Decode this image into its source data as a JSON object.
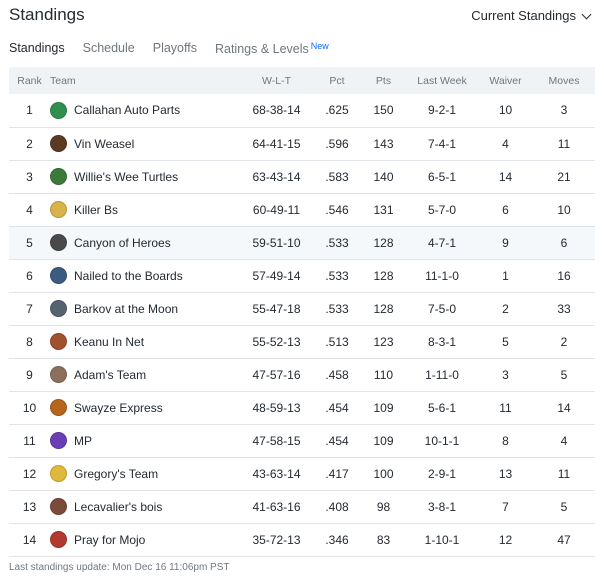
{
  "header": {
    "title": "Standings",
    "dropdown_label": "Current Standings"
  },
  "tabs": [
    {
      "label": "Standings",
      "active": true
    },
    {
      "label": "Schedule",
      "active": false
    },
    {
      "label": "Playoffs",
      "active": false
    },
    {
      "label": "Ratings & Levels",
      "badge": "New",
      "active": false
    }
  ],
  "table": {
    "columns": [
      "Rank",
      "Team",
      "W-L-T",
      "Pct",
      "Pts",
      "Last Week",
      "Waiver",
      "Moves"
    ],
    "rows": [
      {
        "rank": "1",
        "team": "Callahan Auto Parts",
        "wlt": "68-38-14",
        "pct": ".625",
        "pts": "150",
        "last_week": "9-2-1",
        "waiver": "10",
        "moves": "3",
        "avatar_color": "#2f8f4e"
      },
      {
        "rank": "2",
        "team": "Vin Weasel",
        "wlt": "64-41-15",
        "pct": ".596",
        "pts": "143",
        "last_week": "7-4-1",
        "waiver": "4",
        "moves": "11",
        "avatar_color": "#5a3a22"
      },
      {
        "rank": "3",
        "team": "Willie's Wee Turtles",
        "wlt": "63-43-14",
        "pct": ".583",
        "pts": "140",
        "last_week": "6-5-1",
        "waiver": "14",
        "moves": "21",
        "avatar_color": "#3c7a3a"
      },
      {
        "rank": "4",
        "team": "Killer Bs",
        "wlt": "60-49-11",
        "pct": ".546",
        "pts": "131",
        "last_week": "5-7-0",
        "waiver": "6",
        "moves": "10",
        "avatar_color": "#d8b24a"
      },
      {
        "rank": "5",
        "team": "Canyon of Heroes",
        "wlt": "59-51-10",
        "pct": ".533",
        "pts": "128",
        "last_week": "4-7-1",
        "waiver": "9",
        "moves": "6",
        "avatar_color": "#4a4a4a",
        "highlight": true
      },
      {
        "rank": "6",
        "team": "Nailed to the Boards",
        "wlt": "57-49-14",
        "pct": ".533",
        "pts": "128",
        "last_week": "11-1-0",
        "waiver": "1",
        "moves": "16",
        "avatar_color": "#3d5a80"
      },
      {
        "rank": "7",
        "team": "Barkov at the Moon",
        "wlt": "55-47-18",
        "pct": ".533",
        "pts": "128",
        "last_week": "7-5-0",
        "waiver": "2",
        "moves": "33",
        "avatar_color": "#556270"
      },
      {
        "rank": "8",
        "team": "Keanu In Net",
        "wlt": "55-52-13",
        "pct": ".513",
        "pts": "123",
        "last_week": "8-3-1",
        "waiver": "5",
        "moves": "2",
        "avatar_color": "#a0522d"
      },
      {
        "rank": "9",
        "team": "Adam's Team",
        "wlt": "47-57-16",
        "pct": ".458",
        "pts": "110",
        "last_week": "1-11-0",
        "waiver": "3",
        "moves": "5",
        "avatar_color": "#8b6f5c"
      },
      {
        "rank": "10",
        "team": "Swayze Express",
        "wlt": "48-59-13",
        "pct": ".454",
        "pts": "109",
        "last_week": "5-6-1",
        "waiver": "11",
        "moves": "14",
        "avatar_color": "#b5651d"
      },
      {
        "rank": "11",
        "team": "MP",
        "wlt": "47-58-15",
        "pct": ".454",
        "pts": "109",
        "last_week": "10-1-1",
        "waiver": "8",
        "moves": "4",
        "avatar_color": "#6a3fb5"
      },
      {
        "rank": "12",
        "team": "Gregory's Team",
        "wlt": "43-63-14",
        "pct": ".417",
        "pts": "100",
        "last_week": "2-9-1",
        "waiver": "13",
        "moves": "11",
        "avatar_color": "#e0b83c"
      },
      {
        "rank": "13",
        "team": "Lecavalier's bois",
        "wlt": "41-63-16",
        "pct": ".408",
        "pts": "98",
        "last_week": "3-8-1",
        "waiver": "7",
        "moves": "5",
        "avatar_color": "#7a4b3a"
      },
      {
        "rank": "14",
        "team": "Pray for Mojo",
        "wlt": "35-72-13",
        "pct": ".346",
        "pts": "83",
        "last_week": "1-10-1",
        "waiver": "12",
        "moves": "47",
        "avatar_color": "#b03a2e"
      }
    ]
  },
  "footer": {
    "text": "Last standings update: Mon Dec 16 11:06pm PST"
  }
}
